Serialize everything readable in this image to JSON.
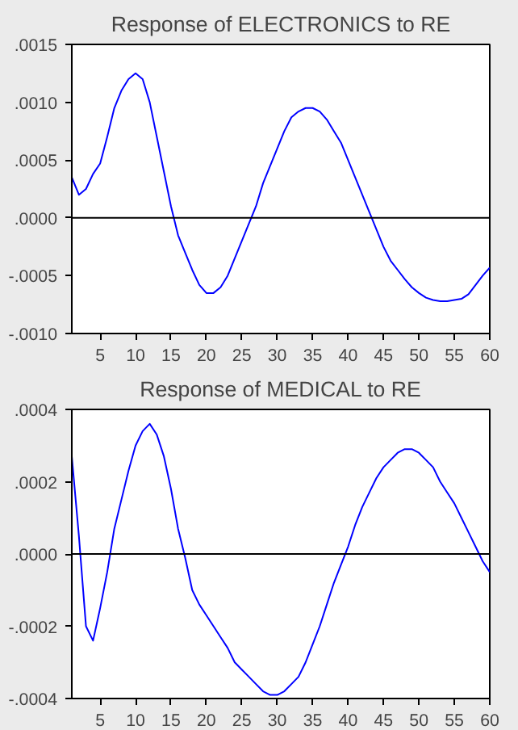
{
  "chart_data": [
    {
      "type": "line",
      "title": "Response of ELECTRONICS to RE",
      "x": [
        1,
        2,
        3,
        4,
        5,
        6,
        7,
        8,
        9,
        10,
        11,
        12,
        13,
        14,
        15,
        16,
        17,
        18,
        19,
        20,
        21,
        22,
        23,
        24,
        25,
        26,
        27,
        28,
        29,
        30,
        31,
        32,
        33,
        34,
        35,
        36,
        37,
        38,
        39,
        40,
        41,
        42,
        43,
        44,
        45,
        46,
        47,
        48,
        49,
        50,
        51,
        52,
        53,
        54,
        55,
        56,
        57,
        58,
        59,
        60
      ],
      "series": [
        {
          "color": "#0000ff",
          "values": [
            0.00035,
            0.0002,
            0.00025,
            0.00038,
            0.00047,
            0.0007,
            0.00095,
            0.0011,
            0.0012,
            0.00125,
            0.0012,
            0.001,
            0.0007,
            0.0004,
            0.0001,
            -0.00015,
            -0.0003,
            -0.00045,
            -0.00058,
            -0.00065,
            -0.00065,
            -0.0006,
            -0.0005,
            -0.00035,
            -0.0002,
            -5e-05,
            0.0001,
            0.0003,
            0.00045,
            0.0006,
            0.00075,
            0.00087,
            0.00092,
            0.00095,
            0.00095,
            0.00092,
            0.00085,
            0.00075,
            0.00065,
            0.0005,
            0.00035,
            0.0002,
            5e-05,
            -0.0001,
            -0.00025,
            -0.00037,
            -0.00045,
            -0.00053,
            -0.0006,
            -0.00065,
            -0.00069,
            -0.00071,
            -0.00072,
            -0.00072,
            -0.00071,
            -0.0007,
            -0.00066,
            -0.00058,
            -0.0005,
            -0.00043
          ]
        }
      ],
      "xlim": [
        1,
        60
      ],
      "xticks": [
        5,
        10,
        15,
        20,
        25,
        30,
        35,
        40,
        45,
        50,
        55,
        60
      ],
      "ylim": [
        -0.001,
        0.0015
      ],
      "yticks": [
        {
          "value": -0.001,
          "label": "-.0010"
        },
        {
          "value": -0.0005,
          "label": "-.0005"
        },
        {
          "value": 0,
          "label": ".0000"
        },
        {
          "value": 0.0005,
          "label": ".0005"
        },
        {
          "value": 0.001,
          "label": ".0010"
        },
        {
          "value": 0.0015,
          "label": ".0015"
        }
      ],
      "ref_lines": [
        {
          "axis": "y",
          "value": 0,
          "color": "#000000"
        }
      ],
      "grid": false
    },
    {
      "type": "line",
      "title": "Response of MEDICAL to RE",
      "x": [
        1,
        2,
        3,
        4,
        5,
        6,
        7,
        8,
        9,
        10,
        11,
        12,
        13,
        14,
        15,
        16,
        17,
        18,
        19,
        20,
        21,
        22,
        23,
        24,
        25,
        26,
        27,
        28,
        29,
        30,
        31,
        32,
        33,
        34,
        35,
        36,
        37,
        38,
        39,
        40,
        41,
        42,
        43,
        44,
        45,
        46,
        47,
        48,
        49,
        50,
        51,
        52,
        53,
        54,
        55,
        56,
        57,
        58,
        59,
        60
      ],
      "series": [
        {
          "color": "#0000ff",
          "values": [
            0.00027,
            5e-05,
            -0.0002,
            -0.00024,
            -0.00015,
            -5e-05,
            7e-05,
            0.00015,
            0.00023,
            0.0003,
            0.00034,
            0.00036,
            0.00033,
            0.00027,
            0.00018,
            7e-05,
            -1e-05,
            -0.0001,
            -0.00014,
            -0.00017,
            -0.0002,
            -0.00023,
            -0.00026,
            -0.0003,
            -0.00032,
            -0.00034,
            -0.00036,
            -0.00038,
            -0.00039,
            -0.00039,
            -0.00038,
            -0.00036,
            -0.00034,
            -0.0003,
            -0.00025,
            -0.0002,
            -0.00014,
            -8e-05,
            -3e-05,
            2e-05,
            8e-05,
            0.00013,
            0.00017,
            0.00021,
            0.00024,
            0.00026,
            0.00028,
            0.00029,
            0.00029,
            0.00028,
            0.00026,
            0.00024,
            0.0002,
            0.00017,
            0.00014,
            0.0001,
            6e-05,
            2e-05,
            -2e-05,
            -5e-05
          ]
        }
      ],
      "xlim": [
        1,
        60
      ],
      "xticks": [
        5,
        10,
        15,
        20,
        25,
        30,
        35,
        40,
        45,
        50,
        55,
        60
      ],
      "ylim": [
        -0.0004,
        0.0004
      ],
      "yticks": [
        {
          "value": -0.0004,
          "label": "-.0004"
        },
        {
          "value": -0.0002,
          "label": "-.0002"
        },
        {
          "value": 0,
          "label": ".0000"
        },
        {
          "value": 0.0002,
          "label": ".0002"
        },
        {
          "value": 0.0004,
          "label": ".0004"
        }
      ],
      "ref_lines": [
        {
          "axis": "y",
          "value": 0,
          "color": "#000000"
        }
      ],
      "grid": false
    }
  ]
}
